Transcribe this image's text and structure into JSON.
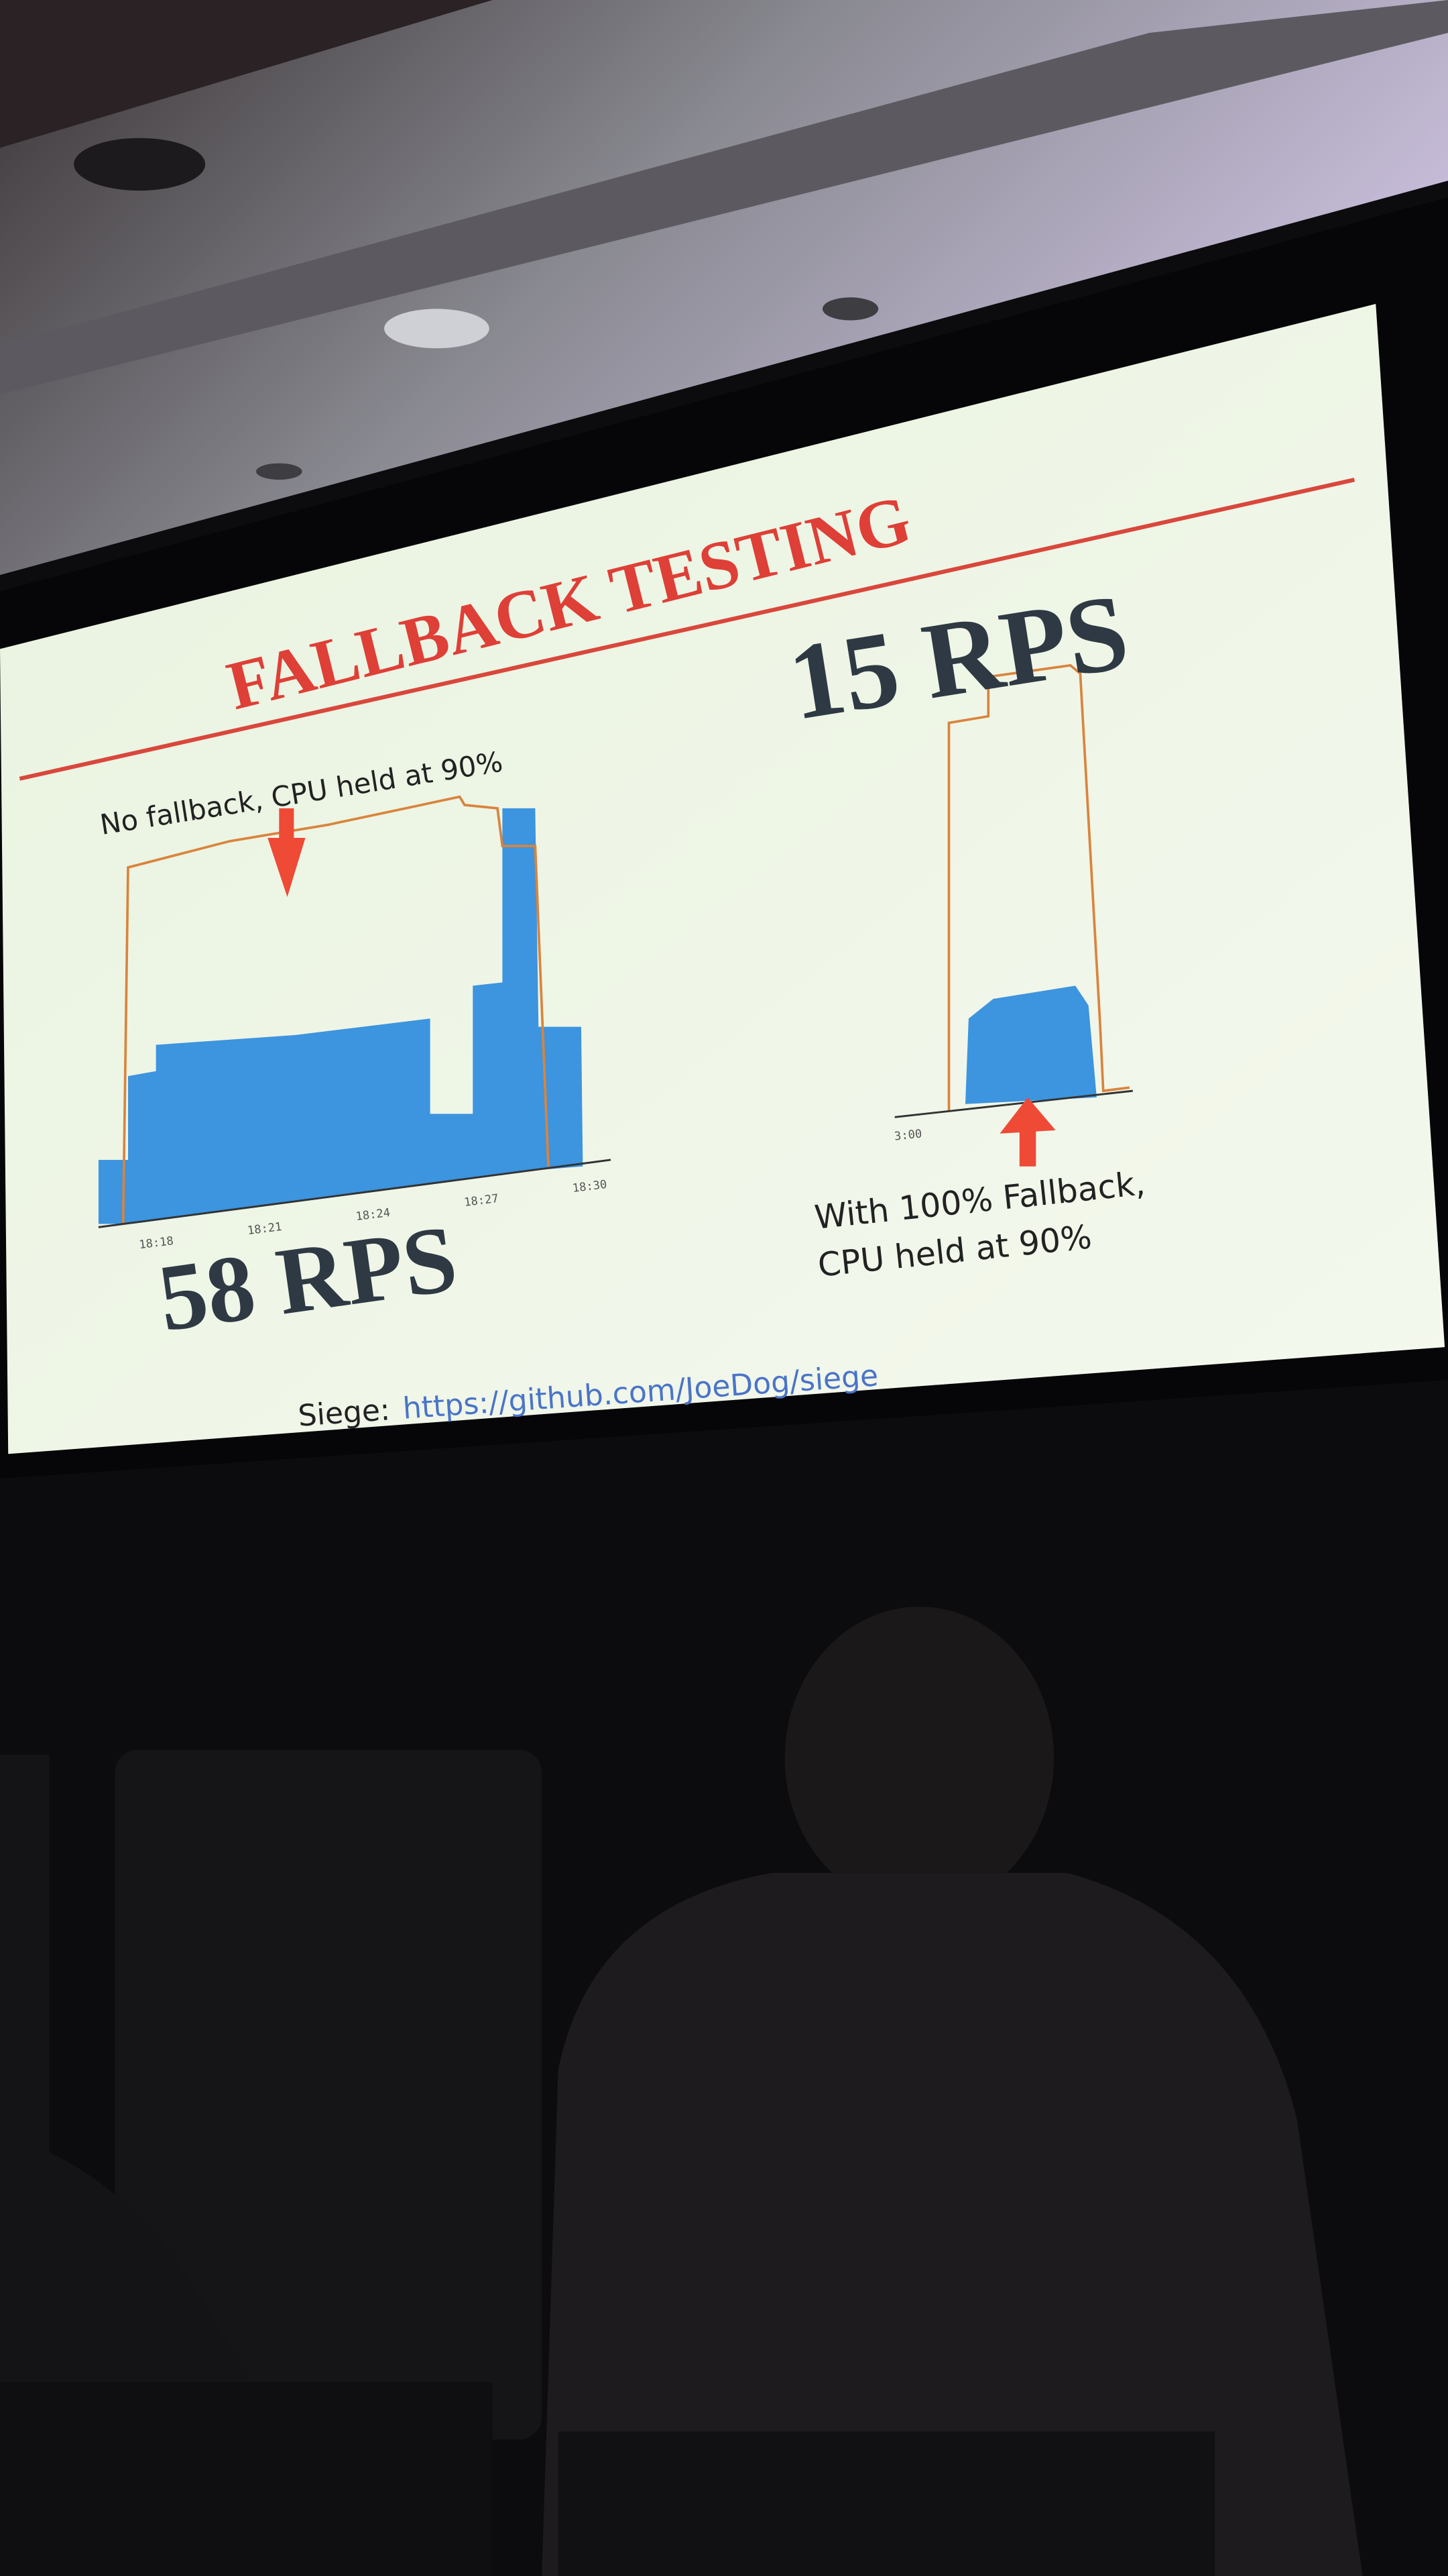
{
  "slide": {
    "title": "FALLBACK TESTING",
    "left": {
      "caption": "No fallback, CPU held at 90%",
      "x_labels": [
        "18:18",
        "18:21",
        "18:24",
        "18:27",
        "18:30"
      ],
      "result": "58 RPS"
    },
    "right": {
      "result": "15 RPS",
      "x_labels": [
        "3:00"
      ],
      "caption_lines": [
        "With 100% Fallback,",
        "CPU held at 90%"
      ]
    },
    "footer": {
      "label": "Siege:",
      "link": "https://github.com/JoeDog/siege"
    }
  }
}
